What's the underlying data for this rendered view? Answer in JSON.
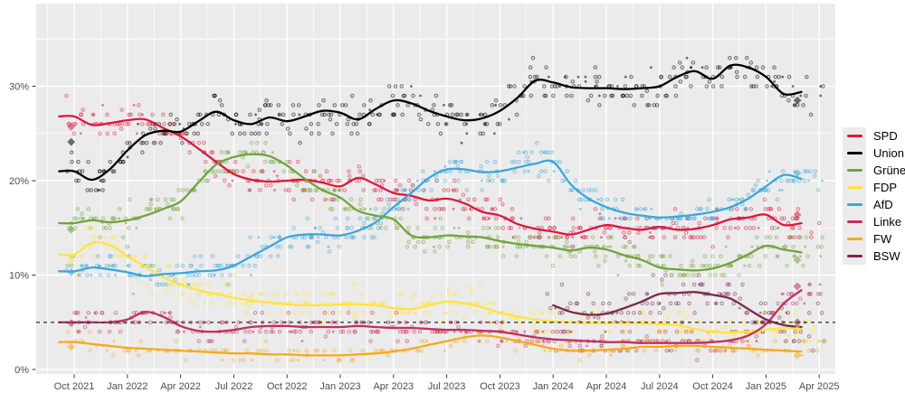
{
  "chart_data": {
    "type": "scatter",
    "description": "Opinion polling trend for German federal election, individual polls (dots), smoothed party trend lines and election results (diamonds)",
    "x_ticks": [
      "Oct 2021",
      "Jan 2022",
      "Apr 2022",
      "Jul 2022",
      "Oct 2022",
      "Jan 2023",
      "Apr 2023",
      "Jul 2023",
      "Oct 2023",
      "Jan 2024",
      "Apr 2024",
      "Jul 2024",
      "Oct 2024",
      "Jan 2025",
      "Apr 2025"
    ],
    "y_ticks": [
      "0%",
      "10%",
      "20%",
      "30%"
    ],
    "y_tick_values": [
      0,
      10,
      20,
      30
    ],
    "y_minor_values": [
      5,
      15,
      25,
      35
    ],
    "ylim": [
      -0.5,
      38.5
    ],
    "months_start_label": "Oct 2021",
    "months_per_tick": 3,
    "threshold_line": {
      "value": 5,
      "style": "dashed",
      "color": "#3a3a3a",
      "meaning": "5% electoral threshold"
    },
    "grid": {
      "major_color": "#ffffff",
      "minor_color": "#ffffff",
      "panel_bg": "#ebebeb",
      "axis_text_color": "#4d4d4d",
      "tick_color": "#333333"
    },
    "legend_position": "right",
    "series": [
      {
        "name": "SPD",
        "color": "#E0173C",
        "start_month": 0,
        "values": [
          26.8,
          25.9,
          26.1,
          26.4,
          26.5,
          25.6,
          24.7,
          23.4,
          22.0,
          20.7,
          20.1,
          19.9,
          20.0,
          20.1,
          19.8,
          19.4,
          20.3,
          19.6,
          18.7,
          18.4,
          17.9,
          18.1,
          17.6,
          16.7,
          16.3,
          15.4,
          14.9,
          14.6,
          14.3,
          14.8,
          15.3,
          15.0,
          14.8,
          15.1,
          14.8,
          14.9,
          15.3,
          15.9,
          16.1,
          16.4,
          15.3,
          15.5
        ]
      },
      {
        "name": "Union",
        "color": "#000000",
        "start_month": 0,
        "values": [
          21.0,
          20.1,
          21.2,
          23.2,
          24.8,
          25.3,
          25.2,
          26.3,
          27.3,
          26.4,
          26.0,
          26.7,
          26.3,
          26.8,
          27.4,
          27.2,
          26.5,
          27.6,
          28.5,
          28.2,
          27.4,
          26.8,
          26.4,
          26.6,
          27.4,
          28.8,
          30.6,
          30.4,
          29.9,
          29.8,
          29.8,
          29.7,
          29.8,
          30.0,
          31.0,
          31.6,
          30.8,
          32.2,
          32.0,
          31.0,
          29.2,
          29.4
        ]
      },
      {
        "name": "Grüne",
        "color": "#6FA43C",
        "start_month": 0,
        "values": [
          15.5,
          15.8,
          15.6,
          15.8,
          16.3,
          17.0,
          17.8,
          19.8,
          21.7,
          22.5,
          22.8,
          22.6,
          21.6,
          20.2,
          19.0,
          18.2,
          16.8,
          16.3,
          15.9,
          14.2,
          14.0,
          14.2,
          14.1,
          14.0,
          13.6,
          13.3,
          13.1,
          12.9,
          12.6,
          12.9,
          12.7,
          12.1,
          11.6,
          10.8,
          10.6,
          10.5,
          10.7,
          11.3,
          12.2,
          13.1,
          12.7,
          12.4
        ]
      },
      {
        "name": "FDP",
        "color": "#FFE43C",
        "start_month": 0,
        "values": [
          12.2,
          13.4,
          13.2,
          12.0,
          10.9,
          9.8,
          9.0,
          8.4,
          8.0,
          7.6,
          7.3,
          7.1,
          6.9,
          6.8,
          6.8,
          6.9,
          6.9,
          6.8,
          6.5,
          6.4,
          6.8,
          7.2,
          7.0,
          6.6,
          6.0,
          5.6,
          5.3,
          5.1,
          5.0,
          4.9,
          4.9,
          4.9,
          4.9,
          4.8,
          4.7,
          4.3,
          4.0,
          3.9,
          4.0,
          4.2,
          4.4,
          4.3
        ]
      },
      {
        "name": "AfD",
        "color": "#3AA7DC",
        "start_month": 0,
        "values": [
          10.4,
          10.8,
          10.6,
          10.3,
          9.9,
          10.1,
          10.2,
          10.4,
          10.5,
          11.0,
          12.0,
          13.0,
          14.0,
          14.3,
          14.3,
          14.2,
          14.7,
          15.6,
          17.2,
          18.7,
          20.3,
          21.2,
          21.2,
          20.9,
          21.0,
          21.4,
          21.8,
          22.0,
          19.6,
          18.1,
          17.2,
          16.6,
          16.3,
          16.1,
          16.2,
          16.4,
          16.7,
          17.2,
          18.1,
          19.4,
          20.6,
          20.2
        ]
      },
      {
        "name": "Linke",
        "color": "#C02F63",
        "start_month": 0,
        "values": [
          5.0,
          5.0,
          5.0,
          5.3,
          6.1,
          5.6,
          4.6,
          4.1,
          4.0,
          4.2,
          4.5,
          4.6,
          4.6,
          4.5,
          4.5,
          4.5,
          4.6,
          4.5,
          4.4,
          4.4,
          4.3,
          4.2,
          4.2,
          4.1,
          4.0,
          3.7,
          3.4,
          3.2,
          3.1,
          3.0,
          2.9,
          2.9,
          2.8,
          2.8,
          2.8,
          2.8,
          2.9,
          3.1,
          3.6,
          4.8,
          7.0,
          8.4
        ]
      },
      {
        "name": "FW",
        "color": "#F7A91B",
        "start_month": 0,
        "values": [
          2.9,
          2.7,
          2.5,
          2.3,
          2.2,
          2.1,
          2.0,
          1.9,
          1.8,
          1.7,
          1.7,
          1.6,
          1.6,
          1.5,
          1.5,
          1.5,
          1.6,
          1.7,
          1.9,
          2.2,
          2.6,
          3.0,
          3.4,
          3.6,
          3.4,
          3.0,
          2.6,
          2.2,
          2.0,
          2.0,
          2.1,
          2.2,
          2.4,
          2.4,
          2.5,
          2.5,
          2.4,
          2.3,
          2.2,
          2.1,
          2.0,
          1.9
        ]
      },
      {
        "name": "BSW",
        "color": "#7A2850",
        "start_month": 27,
        "values": [
          6.8,
          6.1,
          5.8,
          5.9,
          6.5,
          7.2,
          8.0,
          8.1,
          8.2,
          7.9,
          7.5,
          6.4,
          5.3,
          4.7,
          4.5
        ]
      }
    ],
    "election_markers": [
      {
        "month_index": -0.17,
        "results": {
          "SPD": 25.7,
          "Union": 24.1,
          "Grüne": 14.8,
          "FDP": 11.5,
          "AfD": 10.3,
          "Linke": 4.9,
          "FW": 2.4
        }
      },
      {
        "month_index": 40.77,
        "results": {
          "Union": 28.5,
          "AfD": 20.8,
          "SPD": 16.4,
          "Grüne": 11.6,
          "Linke": 8.8,
          "BSW": 5.0,
          "FDP": 4.3,
          "FW": 1.5
        }
      }
    ],
    "scatter_style": {
      "seed": 20250223,
      "counts": {
        "default": 9,
        "Linke": 8,
        "FW": 4,
        "BSW": 8
      },
      "spread": {
        "default": 1.0,
        "Union": 1.15,
        "BSW": 1.45,
        "FW": 0.55,
        "Linke": 0.75
      },
      "opacity": 0.5
    }
  },
  "legend": {
    "items": [
      "SPD",
      "Union",
      "Grüne",
      "FDP",
      "AfD",
      "Linke",
      "FW",
      "BSW"
    ]
  }
}
